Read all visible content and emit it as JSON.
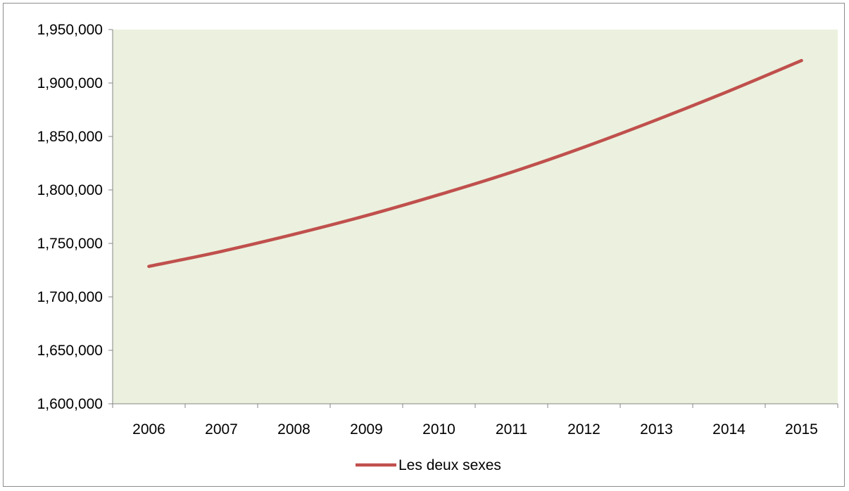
{
  "chart_data": {
    "type": "line",
    "title": "",
    "xlabel": "",
    "ylabel": "",
    "categories": [
      "2006",
      "2007",
      "2008",
      "2009",
      "2010",
      "2011",
      "2012",
      "2013",
      "2014",
      "2015"
    ],
    "ylim": [
      1600000,
      1950000
    ],
    "yticks": [
      1600000,
      1650000,
      1700000,
      1750000,
      1800000,
      1850000,
      1900000,
      1950000
    ],
    "ytick_labels": [
      "1,600,000",
      "1,650,000",
      "1,700,000",
      "1,750,000",
      "1,800,000",
      "1,850,000",
      "1,900,000",
      "1,950,000"
    ],
    "grid": false,
    "legend_position": "bottom",
    "plot_background": "#ebf1de",
    "series": [
      {
        "name": "Les deux sexes",
        "color": "#c0504d",
        "values": [
          1728500,
          1742500,
          1758500,
          1776000,
          1795500,
          1816500,
          1840000,
          1865500,
          1892500,
          1921000
        ]
      }
    ]
  }
}
